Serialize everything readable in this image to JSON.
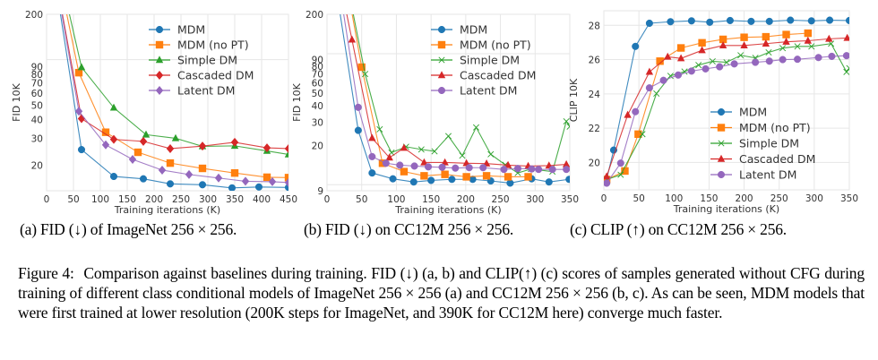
{
  "chart_data": [
    {
      "id": "a",
      "type": "line",
      "title": "",
      "xlabel": "Training iterations (K)",
      "ylabel": "FID 10K",
      "yscale": "log",
      "xlim": [
        0,
        450
      ],
      "ylim": [
        13.5,
        200
      ],
      "xticks": [
        0,
        50,
        100,
        150,
        200,
        250,
        300,
        350,
        400,
        450
      ],
      "yticks": [
        20,
        30,
        40,
        50,
        60,
        70,
        80,
        90,
        200
      ],
      "ytick_labels": [
        "20",
        "30",
        "40",
        "50",
        "60",
        "70",
        "80",
        "90",
        "200"
      ],
      "ygrid_major": [
        100,
        200
      ],
      "grid": true,
      "legend_position": "top-right",
      "series": [
        {
          "name": "MDM",
          "color": "#1f77b4",
          "marker": "circle",
          "x": [
            5,
            65,
            125,
            180,
            230,
            290,
            345,
            395,
            450
          ],
          "y": [
            600,
            25.3,
            16.8,
            16.2,
            15.0,
            14.8,
            14.1,
            14.3,
            14.2
          ]
        },
        {
          "name": "MDM (no PT)",
          "color": "#ff7f0e",
          "marker": "square",
          "x": [
            10,
            60,
            110,
            170,
            230,
            290,
            350,
            410,
            450
          ],
          "y": [
            600,
            82,
            33,
            24.3,
            20.6,
            19.0,
            17.7,
            16.6,
            16.5
          ]
        },
        {
          "name": "Simple DM",
          "color": "#2ca02c",
          "marker": "triangle",
          "x": [
            12,
            65,
            125,
            185,
            240,
            290,
            350,
            410,
            450
          ],
          "y": [
            600,
            89,
            48,
            31.8,
            30.1,
            26.6,
            26.8,
            24.8,
            23.5
          ]
        },
        {
          "name": "Cascaded DM",
          "color": "#d62728",
          "marker": "diamond",
          "x": [
            5,
            65,
            125,
            180,
            230,
            290,
            350,
            410,
            450
          ],
          "y": [
            600,
            40.6,
            29.6,
            28.7,
            25.7,
            26.7,
            28.3,
            26.0,
            25.7
          ]
        },
        {
          "name": "Latent DM",
          "color": "#9467bd",
          "marker": "diamond",
          "x": [
            5,
            60,
            110,
            160,
            215,
            265,
            320,
            370,
            420,
            450
          ],
          "y": [
            600,
            45.5,
            27.2,
            21.8,
            18.5,
            17.3,
            16.4,
            15.6,
            15.5,
            15.3
          ]
        }
      ],
      "markers_on": {
        "MDM": [
          1,
          2,
          3,
          4,
          5,
          6,
          7
        ],
        "MDM (no PT)": [
          1,
          2,
          3,
          4,
          5,
          6,
          7
        ],
        "Simple DM": [
          1,
          2,
          3,
          4,
          5,
          6,
          7
        ],
        "Cascaded DM": [
          1,
          2,
          3,
          4,
          5,
          6,
          7
        ],
        "Latent DM": [
          1,
          2,
          3,
          4,
          5,
          6,
          7,
          8
        ]
      }
    },
    {
      "id": "b",
      "type": "line",
      "title": "",
      "xlabel": "Training iterations (K)",
      "ylabel": "FID 10K",
      "yscale": "log",
      "xlim": [
        0,
        350
      ],
      "ylim": [
        9,
        200
      ],
      "xticks": [
        0,
        50,
        100,
        150,
        200,
        250,
        300,
        350
      ],
      "yticks": [
        9,
        20,
        30,
        40,
        50,
        60,
        70,
        80,
        90,
        200
      ],
      "ytick_labels": [
        "9",
        "20",
        "30",
        "40",
        "50",
        "60",
        "70",
        "80",
        "90",
        "200"
      ],
      "ygrid_major": [
        10,
        100,
        200
      ],
      "grid": true,
      "legend_position": "top-right",
      "series": [
        {
          "name": "MDM",
          "color": "#1f77b4",
          "marker": "circle",
          "x": [
            5,
            45,
            65,
            95,
            125,
            150,
            180,
            210,
            236,
            264,
            295,
            320,
            349
          ],
          "y": [
            600,
            26,
            12.3,
            11.1,
            10.5,
            10.8,
            11.0,
            11.0,
            10.7,
            10.3,
            11.1,
            10.5,
            11.0
          ]
        },
        {
          "name": "MDM (no PT)",
          "color": "#ff7f0e",
          "marker": "square",
          "x": [
            20,
            50,
            80,
            111,
            140,
            170,
            201,
            230,
            261,
            290
          ],
          "y": [
            600,
            79,
            14.6,
            12.6,
            11.7,
            12.0,
            11.5,
            11.7,
            11.5,
            11.5
          ]
        },
        {
          "name": "Simple DM",
          "color": "#2ca02c",
          "marker": "x",
          "x": [
            20,
            55,
            76,
            93,
            114,
            136,
            155,
            175,
            195,
            215,
            236,
            257,
            275,
            294,
            325,
            345,
            350
          ],
          "y": [
            600,
            70,
            26.5,
            17.6,
            19.5,
            18.6,
            18.0,
            23.5,
            16.7,
            27.4,
            17.1,
            14.2,
            12.3,
            13.2,
            12.6,
            30.5,
            27.8
          ]
        },
        {
          "name": "Cascaded DM",
          "color": "#d62728",
          "marker": "triangle",
          "x": [
            10,
            36,
            65,
            90,
            111,
            140,
            170,
            201,
            230,
            261,
            290,
            320,
            345
          ],
          "y": [
            600,
            128,
            22.7,
            16.1,
            19.1,
            14.8,
            14.8,
            14.6,
            14.5,
            14.1,
            13.9,
            14.0,
            14.3
          ]
        },
        {
          "name": "Latent DM",
          "color": "#9467bd",
          "marker": "circle",
          "x": [
            10,
            45,
            65,
            85,
            105,
            126,
            146,
            166,
            185,
            205,
            225,
            255,
            275,
            295,
            305,
            325,
            345
          ],
          "y": [
            600,
            39,
            16.4,
            14.6,
            14.1,
            13.9,
            13.7,
            13.6,
            13.4,
            13.5,
            13.5,
            13.1,
            13.3,
            13.2,
            13.1,
            13.1,
            13.1
          ]
        }
      ]
    },
    {
      "id": "c",
      "type": "line",
      "title": "",
      "xlabel": "Training iterations (K)",
      "ylabel": "CLIP 10K",
      "yscale": "linear",
      "xlim": [
        0,
        350
      ],
      "ylim": [
        18.4,
        28.85
      ],
      "xticks": [
        0,
        50,
        100,
        150,
        200,
        250,
        300,
        350
      ],
      "yticks": [
        20,
        22,
        24,
        26,
        28
      ],
      "ytick_labels": [
        "20",
        "22",
        "24",
        "26",
        "28"
      ],
      "grid": true,
      "legend_position": "lower-right",
      "series": [
        {
          "name": "MDM",
          "color": "#1f77b4",
          "marker": "circle",
          "x": [
            4,
            14,
            45,
            65,
            95,
            125,
            151,
            180,
            210,
            236,
            266,
            296,
            322,
            350
          ],
          "y": [
            19.02,
            20.72,
            26.77,
            28.12,
            28.21,
            28.26,
            28.18,
            28.28,
            28.23,
            28.23,
            28.3,
            28.26,
            28.3,
            28.28
          ]
        },
        {
          "name": "MDM (no PT)",
          "color": "#ff7f0e",
          "marker": "square",
          "x": [
            4,
            30,
            49,
            80,
            110,
            140,
            170,
            200,
            231,
            260,
            291
          ],
          "y": [
            19.0,
            19.5,
            21.65,
            25.91,
            26.68,
            26.98,
            27.18,
            27.3,
            27.33,
            27.46,
            27.54
          ]
        },
        {
          "name": "Simple DM",
          "color": "#2ca02c",
          "marker": "x",
          "x": [
            4,
            24,
            55,
            75,
            95,
            115,
            135,
            155,
            175,
            195,
            216,
            235,
            255,
            276,
            296,
            324,
            346,
            350
          ],
          "y": [
            19.0,
            19.28,
            21.65,
            24.02,
            25.05,
            25.3,
            25.68,
            25.9,
            25.84,
            26.25,
            26.1,
            26.42,
            26.67,
            26.77,
            26.77,
            26.93,
            25.28,
            25.5
          ]
        },
        {
          "name": "Cascaded DM",
          "color": "#d62728",
          "marker": "triangle",
          "x": [
            4,
            34,
            65,
            91,
            110,
            140,
            170,
            200,
            231,
            260,
            291,
            321,
            347
          ],
          "y": [
            19.18,
            22.77,
            25.28,
            26.16,
            26.07,
            26.54,
            26.82,
            26.82,
            26.93,
            27.04,
            27.1,
            27.21,
            27.26
          ]
        },
        {
          "name": "Latent DM",
          "color": "#9467bd",
          "marker": "circle",
          "x": [
            4,
            24,
            45,
            65,
            85,
            106,
            125,
            145,
            165,
            186,
            216,
            236,
            255,
            276,
            306,
            325,
            346
          ],
          "y": [
            18.79,
            19.96,
            22.96,
            24.35,
            24.79,
            25.1,
            25.33,
            25.46,
            25.58,
            25.75,
            25.84,
            25.91,
            26.0,
            26.02,
            26.12,
            26.19,
            26.23
          ]
        }
      ]
    }
  ],
  "subcaptions": {
    "a": "(a) FID (↓) of ImageNet 256 × 256.",
    "b": "(b) FID (↓) on CC12M 256 × 256.",
    "c": "(c) CLIP (↑) on CC12M 256 × 256."
  },
  "caption": {
    "label": "Figure 4:",
    "text": "Comparison against baselines during training.  FID (↓) (a, b) and CLIP(↑) (c) scores of samples generated without CFG during training of different class conditional models of ImageNet 256 × 256 (a) and CC12M 256 × 256 (b, c). As can be seen, MDM models that were first trained at lower resolution (200K steps for ImageNet, and 390K for CC12M here) converge much faster."
  }
}
